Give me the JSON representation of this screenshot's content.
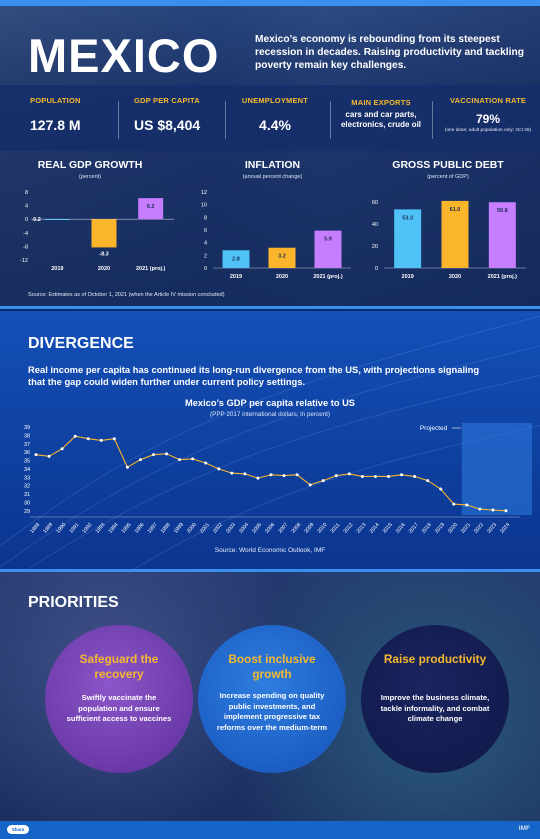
{
  "hero": {
    "title": "MEXICO",
    "intro": "Mexico’s economy is rebounding from its steepest recession in decades. Raising productivity and tackling poverty remain key challenges."
  },
  "stats": [
    {
      "label": "POPULATION",
      "value": "127.8 M"
    },
    {
      "label": "GDP PER CAPITA",
      "value": "US $8,404"
    },
    {
      "label": "UNEMPLOYMENT",
      "value": "4.4%"
    },
    {
      "label": "MAIN EXPORTS",
      "value": "cars and car parts, electronics, crude oil"
    },
    {
      "label": "VACCINATION RATE",
      "value": "79%",
      "note": "(one dose; adult population only; Oct 26)"
    }
  ],
  "hero_source": "Source: Estimates as of October 1, 2021 (when the Article IV mission concluded)",
  "chart_data": [
    {
      "type": "bar",
      "title": "REAL GDP GROWTH",
      "subtitle": "(percent)",
      "categories": [
        "2019",
        "2020",
        "2021 (proj.)"
      ],
      "values": [
        -0.2,
        -8.3,
        6.2
      ],
      "value_labels": [
        "-0.2",
        "-8.3",
        "6.2"
      ],
      "ylim": [
        -12,
        8
      ],
      "yticks": [
        "8",
        "4",
        "0",
        "-4",
        "-8",
        "-12"
      ],
      "colors": [
        "#4fc3f7",
        "#fbb52a",
        "#c77dff"
      ]
    },
    {
      "type": "bar",
      "title": "INFLATION",
      "subtitle": "(annual percent change)",
      "categories": [
        "2019",
        "2020",
        "2021 (proj.)"
      ],
      "values": [
        2.8,
        3.2,
        5.9
      ],
      "value_labels": [
        "2.8",
        "3.2",
        "5.9"
      ],
      "ylim": [
        0,
        12
      ],
      "yticks": [
        "12",
        "10",
        "8",
        "6",
        "4",
        "2",
        "0"
      ],
      "colors": [
        "#4fc3f7",
        "#fbb52a",
        "#c77dff"
      ]
    },
    {
      "type": "bar",
      "title": "GROSS PUBLIC DEBT",
      "subtitle": "(percent of GDP)",
      "categories": [
        "2019",
        "2020",
        "2021 (proj.)"
      ],
      "values": [
        53.3,
        61.0,
        59.8
      ],
      "value_labels": [
        "53.3",
        "61.0",
        "59.8"
      ],
      "ylim": [
        0,
        60
      ],
      "yticks": [
        "60",
        "40",
        "20",
        "0"
      ],
      "colors": [
        "#4fc3f7",
        "#fbb52a",
        "#c77dff"
      ]
    },
    {
      "type": "line",
      "title": "Mexico’s GDP per capita relative to US",
      "subtitle": "(PPP 2017 international dollars, in percent)",
      "x": [
        "1988",
        "1989",
        "1990",
        "1991",
        "1992",
        "1993",
        "1994",
        "1995",
        "1996",
        "1997",
        "1998",
        "1999",
        "2000",
        "2001",
        "2002",
        "2003",
        "2004",
        "2005",
        "2006",
        "2007",
        "2008",
        "2009",
        "2010",
        "2011",
        "2012",
        "2013",
        "2014",
        "2015",
        "2016",
        "2017",
        "2018",
        "2019",
        "2020",
        "2021",
        "2022",
        "2023",
        "2024"
      ],
      "values": [
        35.7,
        35.5,
        36.4,
        37.9,
        37.6,
        37.4,
        37.6,
        34.2,
        35.1,
        35.7,
        35.8,
        35.1,
        35.2,
        34.7,
        34.0,
        33.5,
        33.4,
        32.9,
        33.3,
        33.2,
        33.3,
        32.1,
        32.6,
        33.2,
        33.4,
        33.1,
        33.1,
        33.1,
        33.3,
        33.1,
        32.6,
        31.6,
        29.8,
        29.7,
        29.2,
        29.1,
        29.0
      ],
      "ylim": [
        28.5,
        39
      ],
      "yticks": [
        "39",
        "38",
        "37",
        "36",
        "35",
        "34",
        "33",
        "32",
        "31",
        "30",
        "29"
      ],
      "projected_label": "Projected",
      "projected_from": "2021",
      "line_color": "#fbb52a",
      "point_color": "#ffffff",
      "source": "Source: World Economic Outlook, IMF"
    }
  ],
  "divergence": {
    "title": "DIVERGENCE",
    "intro": "Real income per capita has continued its long-run divergence from the US, with projections signaling that the gap could widen further under current policy settings."
  },
  "priorities": {
    "title": "PRIORITIES",
    "items": [
      {
        "heading": "Safeguard the recovery",
        "body": "Swiftly vaccinate the population and ensure sufficient access to vaccines"
      },
      {
        "heading": "Boost inclusive growth",
        "body": "Increase spending on quality public investments, and implement progressive tax reforms over the medium-term"
      },
      {
        "heading": "Raise productivity",
        "body": "Improve the business climate, tackle informality, and combat climate change"
      }
    ]
  },
  "footer": {
    "button": "Share",
    "brand": "IMF"
  }
}
